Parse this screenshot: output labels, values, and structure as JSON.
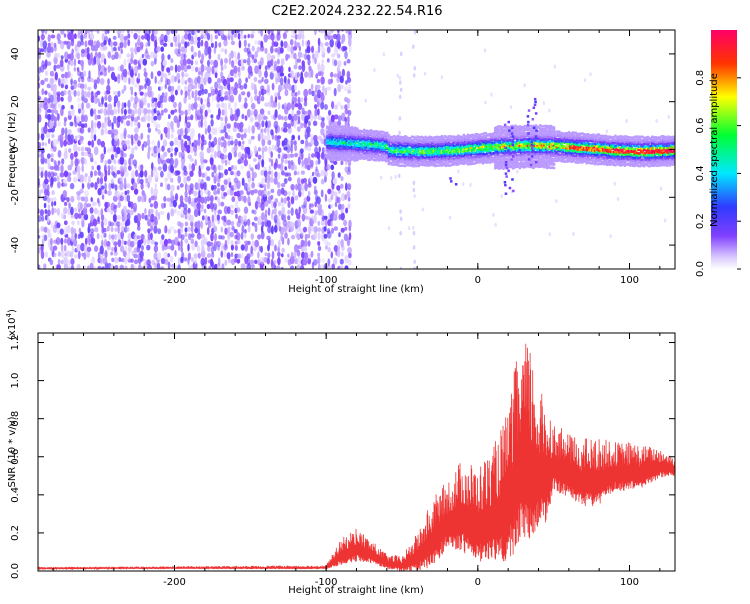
{
  "title": "C2E2.2024.232.22.54.R16",
  "chart_data": [
    {
      "type": "heatmap",
      "xlabel": "Height of straight line (km)",
      "ylabel": "Frequency (Hz)",
      "xlim": [
        -290,
        130
      ],
      "ylim": [
        -50,
        50
      ],
      "x_ticks": [
        -200,
        -100,
        0,
        100
      ],
      "y_ticks": [
        -40,
        -20,
        0,
        20,
        40
      ],
      "x_tick_labels": [
        "-200",
        "-100",
        "0",
        "100"
      ],
      "y_tick_labels": [
        "-40",
        "-20",
        "0",
        "20",
        "40"
      ],
      "colorbar": {
        "label": "Normalized spectral amplitude",
        "range": [
          0.0,
          1.0
        ],
        "ticks": [
          0.0,
          0.2,
          0.4,
          0.6,
          0.8
        ],
        "tick_labels": [
          "0.0",
          "0.2",
          "0.4",
          "0.6",
          "0.8"
        ],
        "colors": [
          "#ffffff",
          "#7f3fff",
          "#3333ff",
          "#00ffff",
          "#00ff33",
          "#ffff00",
          "#ff3300",
          "#ff0066"
        ]
      },
      "regions": [
        {
          "name": "noise",
          "x": [
            -290,
            -85
          ],
          "y": [
            -50,
            50
          ],
          "amplitude": [
            0.0,
            0.2
          ]
        },
        {
          "name": "signal",
          "x": [
            -100,
            130
          ],
          "y": [
            -8,
            12
          ],
          "amplitude": [
            0.1,
            1.0
          ]
        }
      ],
      "grid": false,
      "colors": {
        "band_core": "#00ff66",
        "band_halo": "#5500ff",
        "noise": "#9966ff"
      }
    },
    {
      "type": "line",
      "xlabel": "Height of straight line (km)",
      "ylabel": "SNR (10 * v/v)",
      "exponent_label": "(x10",
      "exponent_value": "4",
      "exponent_close": ")",
      "xlim": [
        -290,
        130
      ],
      "ylim": [
        0,
        1.25
      ],
      "x_ticks": [
        -200,
        -100,
        0,
        100
      ],
      "y_ticks": [
        0.0,
        0.2,
        0.4,
        0.6,
        0.8,
        1.0,
        1.2
      ],
      "x_tick_labels": [
        "-200",
        "-100",
        "0",
        "100"
      ],
      "y_tick_labels": [
        "0.0",
        "0.2",
        "0.4",
        "0.6",
        "0.8",
        "1.0",
        "1.2"
      ],
      "grid": false,
      "series": [
        {
          "color": "#ee3333",
          "x": [
            -290,
            -200,
            -100,
            -90,
            -80,
            -70,
            -60,
            -50,
            -40,
            -30,
            -20,
            -10,
            0,
            10,
            20,
            25,
            30,
            35,
            40,
            45,
            50,
            60,
            70,
            80,
            90,
            100,
            110,
            120,
            130
          ],
          "y": [
            0.015,
            0.018,
            0.02,
            0.1,
            0.14,
            0.1,
            0.05,
            0.04,
            0.1,
            0.2,
            0.3,
            0.35,
            0.3,
            0.35,
            0.45,
            0.6,
            0.7,
            0.65,
            0.6,
            0.58,
            0.6,
            0.55,
            0.52,
            0.52,
            0.55,
            0.55,
            0.55,
            0.57,
            0.55
          ],
          "envelope": [
            0.02,
            0.025,
            0.03,
            0.17,
            0.23,
            0.16,
            0.09,
            0.08,
            0.2,
            0.38,
            0.48,
            0.6,
            0.55,
            0.65,
            0.85,
            1.1,
            1.22,
            1.18,
            0.95,
            0.92,
            0.78,
            0.72,
            0.7,
            0.7,
            0.68,
            0.68,
            0.66,
            0.65,
            0.6
          ]
        }
      ]
    }
  ]
}
